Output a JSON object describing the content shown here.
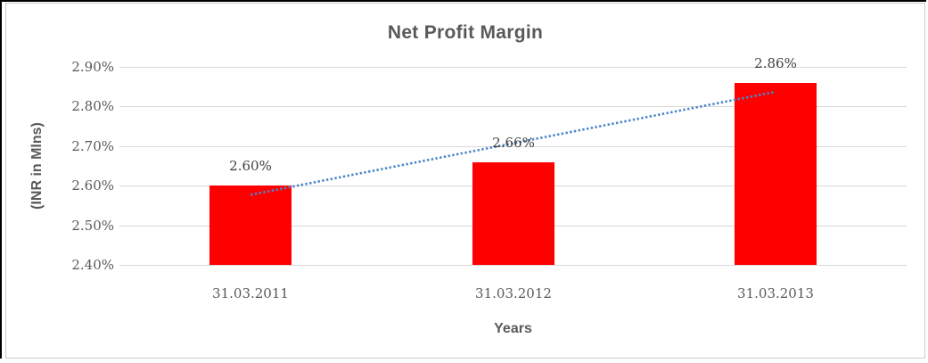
{
  "chart_data": {
    "type": "bar",
    "title": "Net Profit Margin",
    "xlabel": "Years",
    "ylabel": "(INR in Mlns)",
    "categories": [
      "31.03.2011",
      "31.03.2012",
      "31.03.2013"
    ],
    "values": [
      2.6,
      2.66,
      2.86
    ],
    "data_labels": [
      "2.60%",
      "2.66%",
      "2.86%"
    ],
    "y_ticks": [
      {
        "label": "2.90%",
        "value": 2.9
      },
      {
        "label": "2.80%",
        "value": 2.8
      },
      {
        "label": "2.70%",
        "value": 2.7
      },
      {
        "label": "2.60%",
        "value": 2.6
      },
      {
        "label": "2.50%",
        "value": 2.5
      },
      {
        "label": "2.40%",
        "value": 2.4
      }
    ],
    "ylim": [
      2.4,
      2.9
    ],
    "grid": true,
    "legend": "none",
    "bar_color": "#ff0000",
    "gridline_color": "#d9d9d9",
    "text_color": "#595959",
    "data_label_color": "#3f3f3f",
    "trendline": {
      "type": "linear",
      "style": "dotted",
      "color": "#4a86c8",
      "start_value": 2.577,
      "end_value": 2.837
    }
  }
}
